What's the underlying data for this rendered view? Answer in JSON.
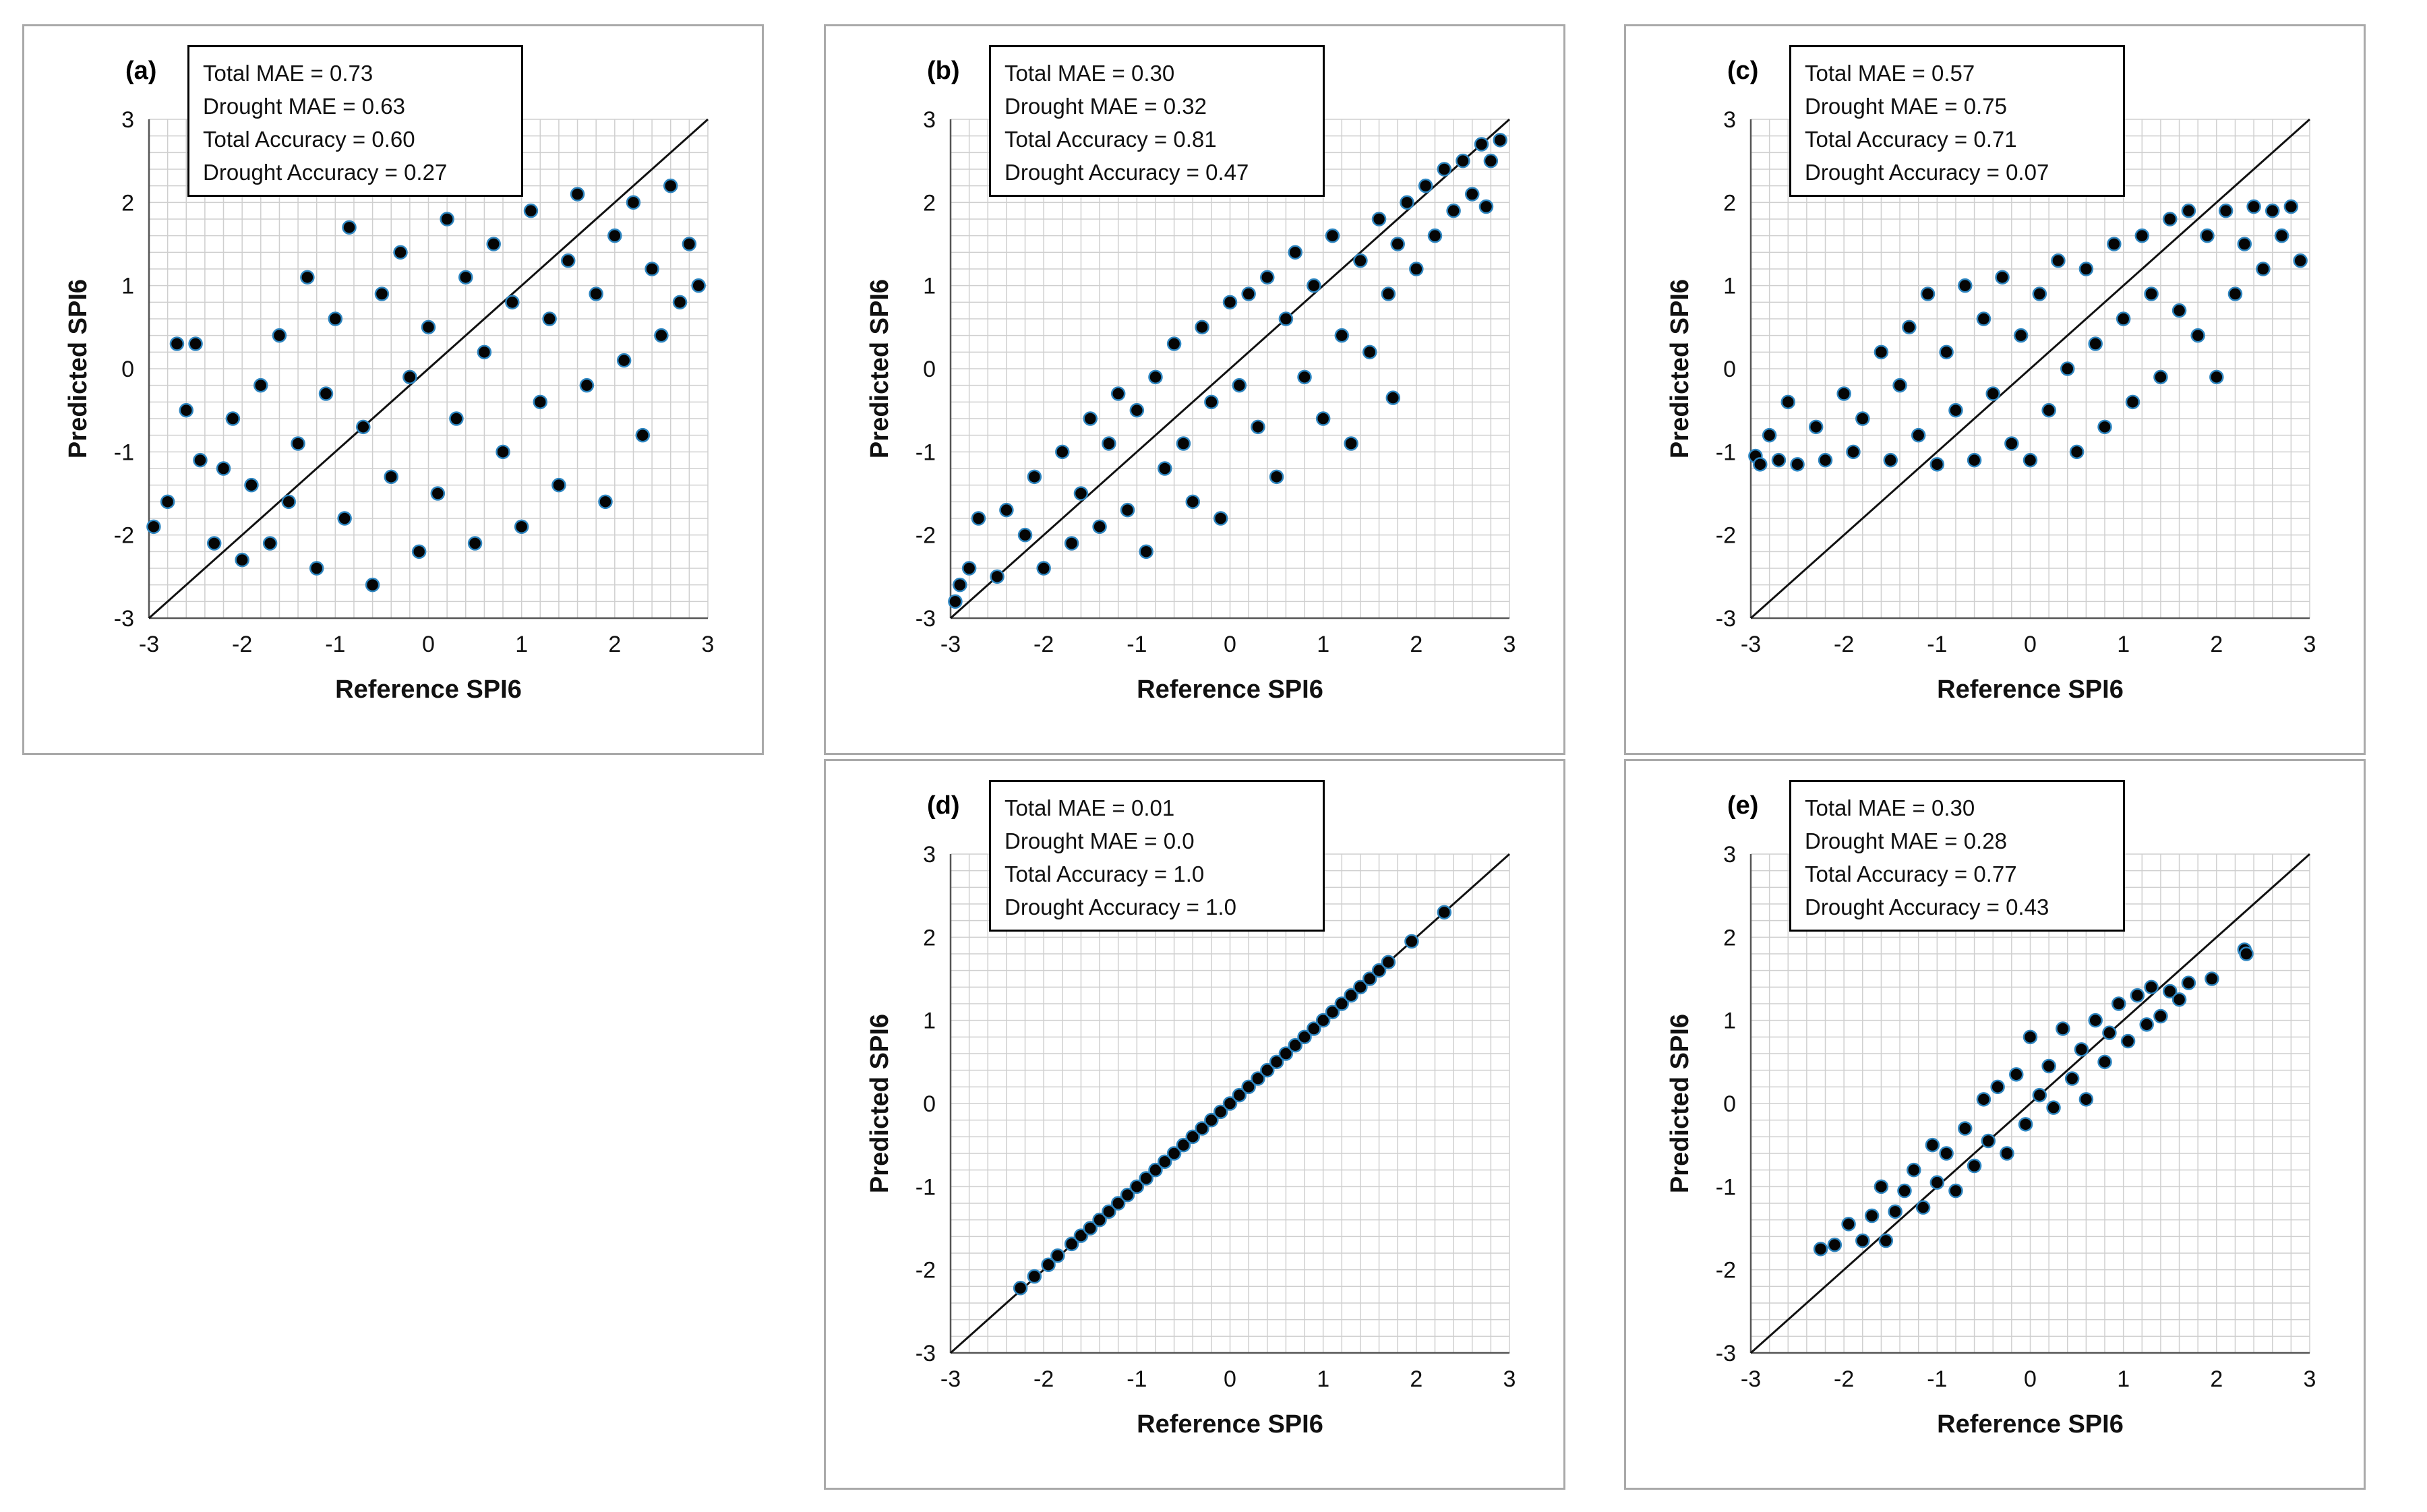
{
  "figure": {
    "x_axis_title": "Reference SPI6",
    "y_axis_title": "Predicted SPI6",
    "colors": {
      "marker_fill": "#050505",
      "marker_edge": "#2e86c1",
      "grid": "#cfcfcf",
      "frame": "#a9a9a9"
    }
  },
  "chart_data": [
    {
      "id": "a",
      "label": "(a)",
      "type": "scatter",
      "stats": [
        "Total MAE = 0.73",
        "Drought MAE = 0.63",
        "Total Accuracy = 0.60",
        "Drought Accuracy = 0.27"
      ],
      "xlabel": "Reference SPI6",
      "ylabel": "Predicted SPI6",
      "xlim": [
        -3,
        3
      ],
      "ylim": [
        -3,
        3
      ],
      "xticks": [
        "-3",
        "-2",
        "-1",
        "0",
        "1",
        "2",
        "3"
      ],
      "yticks": [
        "-3",
        "-2",
        "-1",
        "0",
        "1",
        "2",
        "3"
      ],
      "reference_line": [
        [
          -3,
          -3
        ],
        [
          3,
          3
        ]
      ],
      "points": [
        [
          -2.95,
          -1.9
        ],
        [
          -2.8,
          -1.6
        ],
        [
          -2.7,
          0.3
        ],
        [
          -2.6,
          -0.5
        ],
        [
          -2.5,
          0.3
        ],
        [
          -2.45,
          -1.1
        ],
        [
          -2.3,
          -2.1
        ],
        [
          -2.2,
          -1.2
        ],
        [
          -2.1,
          -0.6
        ],
        [
          -2.0,
          -2.3
        ],
        [
          -1.9,
          -1.4
        ],
        [
          -1.8,
          -0.2
        ],
        [
          -1.7,
          -2.1
        ],
        [
          -1.6,
          0.4
        ],
        [
          -1.5,
          -1.6
        ],
        [
          -1.4,
          -0.9
        ],
        [
          -1.3,
          1.1
        ],
        [
          -1.2,
          -2.4
        ],
        [
          -1.1,
          -0.3
        ],
        [
          -1.0,
          0.6
        ],
        [
          -0.9,
          -1.8
        ],
        [
          -0.85,
          1.7
        ],
        [
          -0.7,
          -0.7
        ],
        [
          -0.6,
          -2.6
        ],
        [
          -0.5,
          0.9
        ],
        [
          -0.4,
          -1.3
        ],
        [
          -0.3,
          1.4
        ],
        [
          -0.2,
          -0.1
        ],
        [
          -0.1,
          -2.2
        ],
        [
          0.0,
          0.5
        ],
        [
          0.1,
          -1.5
        ],
        [
          0.2,
          1.8
        ],
        [
          0.3,
          -0.6
        ],
        [
          0.4,
          1.1
        ],
        [
          0.5,
          -2.1
        ],
        [
          0.6,
          0.2
        ],
        [
          0.7,
          1.5
        ],
        [
          0.8,
          -1.0
        ],
        [
          0.9,
          0.8
        ],
        [
          1.0,
          -1.9
        ],
        [
          1.1,
          1.9
        ],
        [
          1.2,
          -0.4
        ],
        [
          1.3,
          0.6
        ],
        [
          1.4,
          -1.4
        ],
        [
          1.5,
          1.3
        ],
        [
          1.6,
          2.1
        ],
        [
          1.7,
          -0.2
        ],
        [
          1.8,
          0.9
        ],
        [
          1.9,
          -1.6
        ],
        [
          2.0,
          1.6
        ],
        [
          2.1,
          0.1
        ],
        [
          2.2,
          2.0
        ],
        [
          2.3,
          -0.8
        ],
        [
          2.4,
          1.2
        ],
        [
          2.5,
          0.4
        ],
        [
          2.6,
          2.2
        ],
        [
          2.7,
          0.8
        ],
        [
          2.8,
          1.5
        ],
        [
          2.9,
          1.0
        ]
      ]
    },
    {
      "id": "b",
      "label": "(b)",
      "type": "scatter",
      "stats": [
        "Total MAE = 0.30",
        "Drought MAE = 0.32",
        "Total Accuracy = 0.81",
        "Drought Accuracy = 0.47"
      ],
      "xlabel": "Reference SPI6",
      "ylabel": "Predicted SPI6",
      "xlim": [
        -3,
        3
      ],
      "ylim": [
        -3,
        3
      ],
      "xticks": [
        "-3",
        "-2",
        "-1",
        "0",
        "1",
        "2",
        "3"
      ],
      "yticks": [
        "-3",
        "-2",
        "-1",
        "0",
        "1",
        "2",
        "3"
      ],
      "reference_line": [
        [
          -3,
          -3
        ],
        [
          3,
          3
        ]
      ],
      "points": [
        [
          -2.95,
          -2.8
        ],
        [
          -2.9,
          -2.6
        ],
        [
          -2.8,
          -2.4
        ],
        [
          -2.7,
          -1.8
        ],
        [
          -2.5,
          -2.5
        ],
        [
          -2.4,
          -1.7
        ],
        [
          -2.2,
          -2.0
        ],
        [
          -2.1,
          -1.3
        ],
        [
          -2.0,
          -2.4
        ],
        [
          -1.8,
          -1.0
        ],
        [
          -1.7,
          -2.1
        ],
        [
          -1.6,
          -1.5
        ],
        [
          -1.5,
          -0.6
        ],
        [
          -1.4,
          -1.9
        ],
        [
          -1.3,
          -0.9
        ],
        [
          -1.2,
          -0.3
        ],
        [
          -1.1,
          -1.7
        ],
        [
          -1.0,
          -0.5
        ],
        [
          -0.9,
          -2.2
        ],
        [
          -0.8,
          -0.1
        ],
        [
          -0.7,
          -1.2
        ],
        [
          -0.6,
          0.3
        ],
        [
          -0.5,
          -0.9
        ],
        [
          -0.4,
          -1.6
        ],
        [
          -0.3,
          0.5
        ],
        [
          -0.2,
          -0.4
        ],
        [
          -0.1,
          -1.8
        ],
        [
          0.0,
          0.8
        ],
        [
          0.1,
          -0.2
        ],
        [
          0.2,
          0.9
        ],
        [
          0.3,
          -0.7
        ],
        [
          0.4,
          1.1
        ],
        [
          0.5,
          -1.3
        ],
        [
          0.6,
          0.6
        ],
        [
          0.7,
          1.4
        ],
        [
          0.8,
          -0.1
        ],
        [
          0.9,
          1.0
        ],
        [
          1.0,
          -0.6
        ],
        [
          1.1,
          1.6
        ],
        [
          1.2,
          0.4
        ],
        [
          1.3,
          -0.9
        ],
        [
          1.4,
          1.3
        ],
        [
          1.5,
          0.2
        ],
        [
          1.6,
          1.8
        ],
        [
          1.7,
          0.9
        ],
        [
          1.75,
          -0.35
        ],
        [
          1.8,
          1.5
        ],
        [
          1.9,
          2.0
        ],
        [
          2.0,
          1.2
        ],
        [
          2.1,
          2.2
        ],
        [
          2.2,
          1.6
        ],
        [
          2.3,
          2.4
        ],
        [
          2.4,
          1.9
        ],
        [
          2.5,
          2.5
        ],
        [
          2.6,
          2.1
        ],
        [
          2.7,
          2.7
        ],
        [
          2.75,
          1.95
        ],
        [
          2.8,
          2.5
        ],
        [
          2.9,
          2.75
        ]
      ]
    },
    {
      "id": "c",
      "label": "(c)",
      "type": "scatter",
      "stats": [
        "Total MAE = 0.57",
        "Drought MAE = 0.75",
        "Total Accuracy = 0.71",
        "Drought Accuracy = 0.07"
      ],
      "xlabel": "Reference SPI6",
      "ylabel": "Predicted SPI6",
      "xlim": [
        -3,
        3
      ],
      "ylim": [
        -3,
        3
      ],
      "xticks": [
        "-3",
        "-2",
        "-1",
        "0",
        "1",
        "2",
        "3"
      ],
      "yticks": [
        "-3",
        "-2",
        "-1",
        "0",
        "1",
        "2",
        "3"
      ],
      "reference_line": [
        [
          -3,
          -3
        ],
        [
          3,
          3
        ]
      ],
      "points": [
        [
          -2.95,
          -1.05
        ],
        [
          -2.9,
          -1.15
        ],
        [
          -2.8,
          -0.8
        ],
        [
          -2.7,
          -1.1
        ],
        [
          -2.6,
          -0.4
        ],
        [
          -2.5,
          -1.15
        ],
        [
          -2.3,
          -0.7
        ],
        [
          -2.2,
          -1.1
        ],
        [
          -2.0,
          -0.3
        ],
        [
          -1.9,
          -1.0
        ],
        [
          -1.8,
          -0.6
        ],
        [
          -1.6,
          0.2
        ],
        [
          -1.5,
          -1.1
        ],
        [
          -1.4,
          -0.2
        ],
        [
          -1.3,
          0.5
        ],
        [
          -1.2,
          -0.8
        ],
        [
          -1.1,
          0.9
        ],
        [
          -1.0,
          -1.15
        ],
        [
          -0.9,
          0.2
        ],
        [
          -0.8,
          -0.5
        ],
        [
          -0.7,
          1.0
        ],
        [
          -0.6,
          -1.1
        ],
        [
          -0.5,
          0.6
        ],
        [
          -0.4,
          -0.3
        ],
        [
          -0.3,
          1.1
        ],
        [
          -0.2,
          -0.9
        ],
        [
          -0.1,
          0.4
        ],
        [
          0.0,
          -1.1
        ],
        [
          0.1,
          0.9
        ],
        [
          0.2,
          -0.5
        ],
        [
          0.3,
          1.3
        ],
        [
          0.4,
          0.0
        ],
        [
          0.5,
          -1.0
        ],
        [
          0.6,
          1.2
        ],
        [
          0.7,
          0.3
        ],
        [
          0.8,
          -0.7
        ],
        [
          0.9,
          1.5
        ],
        [
          1.0,
          0.6
        ],
        [
          1.1,
          -0.4
        ],
        [
          1.2,
          1.6
        ],
        [
          1.3,
          0.9
        ],
        [
          1.4,
          -0.1
        ],
        [
          1.5,
          1.8
        ],
        [
          1.6,
          0.7
        ],
        [
          1.7,
          1.9
        ],
        [
          1.8,
          0.4
        ],
        [
          1.9,
          1.6
        ],
        [
          2.0,
          -0.1
        ],
        [
          2.1,
          1.9
        ],
        [
          2.2,
          0.9
        ],
        [
          2.3,
          1.5
        ],
        [
          2.4,
          1.95
        ],
        [
          2.5,
          1.2
        ],
        [
          2.6,
          1.9
        ],
        [
          2.7,
          1.6
        ],
        [
          2.8,
          1.95
        ],
        [
          2.9,
          1.3
        ]
      ]
    },
    {
      "id": "d",
      "label": "(d)",
      "type": "scatter",
      "stats": [
        "Total MAE = 0.01",
        "Drought MAE = 0.0",
        "Total Accuracy = 1.0",
        "Drought Accuracy = 1.0"
      ],
      "xlabel": "Reference SPI6",
      "ylabel": "Predicted SPI6",
      "xlim": [
        -3,
        3
      ],
      "ylim": [
        -3,
        3
      ],
      "xticks": [
        "-3",
        "-2",
        "-1",
        "0",
        "1",
        "2",
        "3"
      ],
      "yticks": [
        "-3",
        "-2",
        "-1",
        "0",
        "1",
        "2",
        "3"
      ],
      "reference_line": [
        [
          -3,
          -3
        ],
        [
          3,
          3
        ]
      ],
      "points": [
        [
          -2.25,
          -2.22
        ],
        [
          -2.1,
          -2.08
        ],
        [
          -1.95,
          -1.94
        ],
        [
          -1.85,
          -1.83
        ],
        [
          -1.7,
          -1.69
        ],
        [
          -1.6,
          -1.59
        ],
        [
          -1.5,
          -1.5
        ],
        [
          -1.4,
          -1.4
        ],
        [
          -1.3,
          -1.3
        ],
        [
          -1.2,
          -1.2
        ],
        [
          -1.1,
          -1.1
        ],
        [
          -1.0,
          -1.0
        ],
        [
          -0.9,
          -0.9
        ],
        [
          -0.8,
          -0.8
        ],
        [
          -0.7,
          -0.7
        ],
        [
          -0.6,
          -0.6
        ],
        [
          -0.5,
          -0.5
        ],
        [
          -0.4,
          -0.4
        ],
        [
          -0.3,
          -0.3
        ],
        [
          -0.2,
          -0.2
        ],
        [
          -0.1,
          -0.1
        ],
        [
          0.0,
          0.0
        ],
        [
          0.1,
          0.1
        ],
        [
          0.2,
          0.2
        ],
        [
          0.3,
          0.3
        ],
        [
          0.4,
          0.4
        ],
        [
          0.5,
          0.5
        ],
        [
          0.6,
          0.6
        ],
        [
          0.7,
          0.7
        ],
        [
          0.8,
          0.8
        ],
        [
          0.9,
          0.9
        ],
        [
          1.0,
          1.0
        ],
        [
          1.1,
          1.1
        ],
        [
          1.2,
          1.2
        ],
        [
          1.3,
          1.3
        ],
        [
          1.4,
          1.4
        ],
        [
          1.5,
          1.5
        ],
        [
          1.6,
          1.6
        ],
        [
          1.7,
          1.7
        ],
        [
          1.95,
          1.95
        ],
        [
          2.3,
          2.3
        ]
      ]
    },
    {
      "id": "e",
      "label": "(e)",
      "type": "scatter",
      "stats": [
        "Total MAE = 0.30",
        "Drought MAE = 0.28",
        "Total Accuracy = 0.77",
        "Drought Accuracy = 0.43"
      ],
      "xlabel": "Reference SPI6",
      "ylabel": "Predicted SPI6",
      "xlim": [
        -3,
        3
      ],
      "ylim": [
        -3,
        3
      ],
      "xticks": [
        "-3",
        "-2",
        "-1",
        "0",
        "1",
        "2",
        "3"
      ],
      "yticks": [
        "-3",
        "-2",
        "-1",
        "0",
        "1",
        "2",
        "3"
      ],
      "reference_line": [
        [
          -3,
          -3
        ],
        [
          3,
          3
        ]
      ],
      "points": [
        [
          -2.25,
          -1.75
        ],
        [
          -2.1,
          -1.7
        ],
        [
          -1.95,
          -1.45
        ],
        [
          -1.8,
          -1.65
        ],
        [
          -1.7,
          -1.35
        ],
        [
          -1.6,
          -1.0
        ],
        [
          -1.55,
          -1.65
        ],
        [
          -1.45,
          -1.3
        ],
        [
          -1.35,
          -1.05
        ],
        [
          -1.25,
          -0.8
        ],
        [
          -1.15,
          -1.25
        ],
        [
          -1.05,
          -0.5
        ],
        [
          -1.0,
          -0.95
        ],
        [
          -0.9,
          -0.6
        ],
        [
          -0.8,
          -1.05
        ],
        [
          -0.7,
          -0.3
        ],
        [
          -0.6,
          -0.75
        ],
        [
          -0.5,
          0.05
        ],
        [
          -0.45,
          -0.45
        ],
        [
          -0.35,
          0.2
        ],
        [
          -0.25,
          -0.6
        ],
        [
          -0.15,
          0.35
        ],
        [
          -0.05,
          -0.25
        ],
        [
          0.0,
          0.8
        ],
        [
          0.1,
          0.1
        ],
        [
          0.2,
          0.45
        ],
        [
          0.25,
          -0.05
        ],
        [
          0.35,
          0.9
        ],
        [
          0.45,
          0.3
        ],
        [
          0.55,
          0.65
        ],
        [
          0.6,
          0.05
        ],
        [
          0.7,
          1.0
        ],
        [
          0.8,
          0.5
        ],
        [
          0.85,
          0.85
        ],
        [
          0.95,
          1.2
        ],
        [
          1.05,
          0.75
        ],
        [
          1.15,
          1.3
        ],
        [
          1.25,
          0.95
        ],
        [
          1.3,
          1.4
        ],
        [
          1.4,
          1.05
        ],
        [
          1.5,
          1.35
        ],
        [
          1.6,
          1.25
        ],
        [
          1.7,
          1.45
        ],
        [
          1.95,
          1.5
        ],
        [
          2.3,
          1.85
        ],
        [
          2.32,
          1.8
        ]
      ]
    }
  ]
}
